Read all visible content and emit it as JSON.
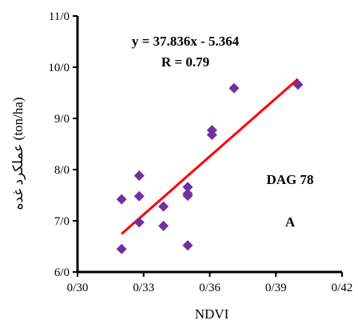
{
  "chart_data": {
    "type": "scatter",
    "xlabel": "NDVI",
    "ylabel": "عملکرد غده (ton/ha)",
    "xlim": [
      0.3,
      0.42
    ],
    "ylim": [
      6.0,
      11.0
    ],
    "x_ticks": [
      0.3,
      0.33,
      0.36,
      0.39,
      0.42
    ],
    "x_tick_labels": [
      "0/30",
      "0/33",
      "0/36",
      "0/39",
      "0/42"
    ],
    "y_ticks": [
      6,
      7,
      8,
      9,
      10,
      11
    ],
    "y_tick_labels": [
      "6/0",
      "7/0",
      "8/0",
      "9/0",
      "10/0",
      "11/0"
    ],
    "grid": false,
    "series": [
      {
        "marker": "diamond",
        "color": "#7030A0",
        "points": [
          {
            "x": 0.32,
            "y": 6.45
          },
          {
            "x": 0.32,
            "y": 7.42
          },
          {
            "x": 0.328,
            "y": 7.48
          },
          {
            "x": 0.328,
            "y": 7.88
          },
          {
            "x": 0.328,
            "y": 6.97
          },
          {
            "x": 0.339,
            "y": 7.28
          },
          {
            "x": 0.339,
            "y": 6.9
          },
          {
            "x": 0.35,
            "y": 7.49
          },
          {
            "x": 0.35,
            "y": 7.53
          },
          {
            "x": 0.35,
            "y": 7.66
          },
          {
            "x": 0.35,
            "y": 6.52
          },
          {
            "x": 0.361,
            "y": 8.68
          },
          {
            "x": 0.361,
            "y": 8.77
          },
          {
            "x": 0.371,
            "y": 9.59
          },
          {
            "x": 0.4,
            "y": 9.66
          }
        ]
      }
    ],
    "trendline": {
      "color": "#FF0000",
      "slope": 37.836,
      "intercept": -5.364,
      "x_range": [
        0.32,
        0.4
      ]
    },
    "equation": "y = 37.836x - 5.364",
    "r_value": "R = 0.79",
    "annotations": [
      "DAG 78",
      "A"
    ]
  }
}
